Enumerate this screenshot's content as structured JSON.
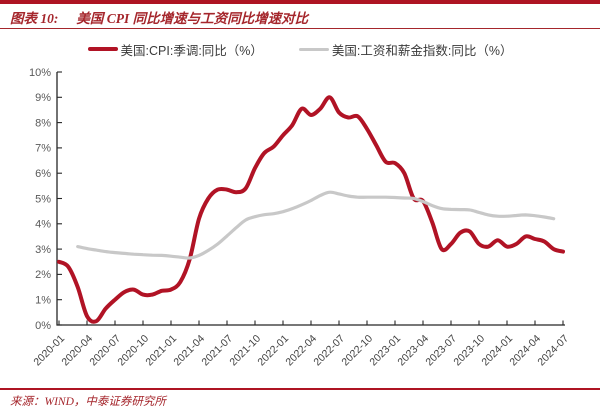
{
  "title": {
    "label": "图表 10:",
    "text": "美国 CPI 同比增速与工资同比增速对比"
  },
  "source": "来源：WIND，中泰证券研究所",
  "colors": {
    "accent_red": "#ae1423",
    "title_red": "#a5262c",
    "cpi_line": "#b11325",
    "wage_line": "#c8c8c8",
    "axis": "#262626",
    "y_tick_label": "#595959",
    "x_tick_label": "#404040"
  },
  "chart_data": {
    "type": "line",
    "title": "美国 CPI 同比增速与工资同比增速对比",
    "xlabel": "",
    "ylabel": "",
    "ylim": [
      0,
      10
    ],
    "ytick_step": 1,
    "ytick_suffix": "%",
    "grid": false,
    "legend_position": "top-center",
    "x_tick_labels": [
      "2020-01",
      "2020-04",
      "2020-07",
      "2020-10",
      "2021-01",
      "2021-04",
      "2021-07",
      "2021-10",
      "2022-01",
      "2022-04",
      "2022-07",
      "2022-10",
      "2023-01",
      "2023-04",
      "2023-07",
      "2023-10",
      "2024-01",
      "2024-04",
      "2024-07"
    ],
    "x": [
      "2020-01",
      "2020-02",
      "2020-03",
      "2020-04",
      "2020-05",
      "2020-06",
      "2020-07",
      "2020-08",
      "2020-09",
      "2020-10",
      "2020-11",
      "2020-12",
      "2021-01",
      "2021-02",
      "2021-03",
      "2021-04",
      "2021-05",
      "2021-06",
      "2021-07",
      "2021-08",
      "2021-09",
      "2021-10",
      "2021-11",
      "2021-12",
      "2022-01",
      "2022-02",
      "2022-03",
      "2022-04",
      "2022-05",
      "2022-06",
      "2022-07",
      "2022-08",
      "2022-09",
      "2022-10",
      "2022-11",
      "2022-12",
      "2023-01",
      "2023-02",
      "2023-03",
      "2023-04",
      "2023-05",
      "2023-06",
      "2023-07",
      "2023-08",
      "2023-09",
      "2023-10",
      "2023-11",
      "2023-12",
      "2024-01",
      "2024-02",
      "2024-03",
      "2024-04",
      "2024-05",
      "2024-06",
      "2024-07"
    ],
    "series": [
      {
        "name": "美国:CPI:季调:同比（%）",
        "color": "#b11325",
        "stroke_width": 4,
        "values": [
          2.5,
          2.3,
          1.5,
          0.35,
          0.15,
          0.65,
          1.0,
          1.3,
          1.4,
          1.2,
          1.2,
          1.35,
          1.4,
          1.7,
          2.6,
          4.2,
          5.0,
          5.35,
          5.35,
          5.25,
          5.4,
          6.2,
          6.8,
          7.05,
          7.5,
          7.9,
          8.55,
          8.3,
          8.55,
          9.0,
          8.4,
          8.2,
          8.25,
          7.75,
          7.1,
          6.45,
          6.4,
          6.0,
          5.0,
          4.9,
          4.05,
          3.0,
          3.2,
          3.65,
          3.7,
          3.2,
          3.1,
          3.35,
          3.1,
          3.2,
          3.5,
          3.4,
          3.3,
          3.0,
          2.9
        ]
      },
      {
        "name": "美国:工资和薪金指数:同比（%）",
        "color": "#c8c8c8",
        "stroke_width": 3.2,
        "values": [
          null,
          null,
          3.1,
          3.02,
          2.96,
          2.9,
          2.86,
          2.83,
          2.8,
          2.78,
          2.76,
          2.75,
          2.72,
          2.68,
          2.65,
          2.75,
          2.95,
          3.2,
          3.52,
          3.85,
          4.15,
          4.28,
          4.36,
          4.4,
          4.48,
          4.6,
          4.75,
          4.92,
          5.12,
          5.25,
          5.18,
          5.1,
          5.05,
          5.05,
          5.05,
          5.05,
          5.04,
          5.02,
          5.0,
          4.88,
          4.72,
          4.6,
          4.57,
          4.56,
          4.55,
          4.45,
          4.35,
          4.3,
          4.3,
          4.33,
          4.35,
          4.32,
          4.27,
          4.2,
          null
        ]
      }
    ]
  }
}
